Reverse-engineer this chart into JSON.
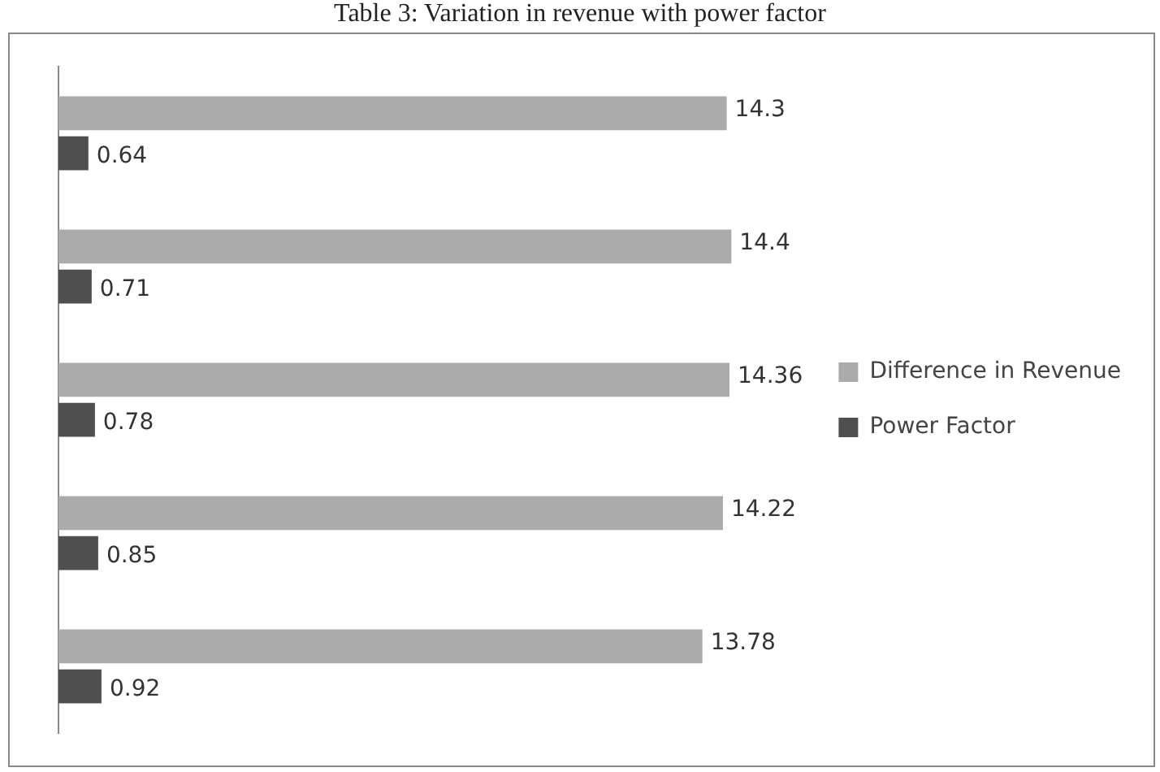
{
  "chart_data": {
    "type": "bar",
    "orientation": "horizontal",
    "title": "Table 3: Variation in revenue with power factor",
    "categories": [
      null,
      null,
      null,
      null,
      null
    ],
    "series": [
      {
        "name": "Difference in Revenue",
        "color": "#ababab",
        "values": [
          14.3,
          14.4,
          14.36,
          14.22,
          13.78
        ]
      },
      {
        "name": "Power Factor",
        "color": "#4f4f4f",
        "values": [
          0.64,
          0.71,
          0.78,
          0.85,
          0.92
        ]
      }
    ],
    "data_labels": true,
    "legend": "right",
    "tick_labels": false,
    "grid": false
  }
}
